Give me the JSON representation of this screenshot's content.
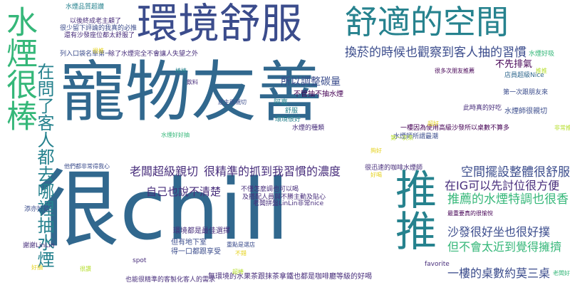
{
  "colors": {
    "navy": "#3b4c8c",
    "blue": "#31688e",
    "teal": "#26828e",
    "green": "#35b779",
    "lime": "#b5de2b",
    "yellow": "#e5d21f",
    "purple": "#472d7b",
    "darkpurple": "#440154"
  },
  "words": [
    {
      "text": "寵物友善",
      "color": "blue",
      "orientation": "horizontal"
    },
    {
      "text": "很chill",
      "color": "blue",
      "orientation": "horizontal"
    },
    {
      "text": "環境舒服",
      "color": "navy",
      "orientation": "horizontal"
    },
    {
      "text": "舒適的空間",
      "color": "teal",
      "orientation": "horizontal"
    },
    {
      "text": "水煙很棒",
      "color": "green",
      "orientation": "vertical"
    },
    {
      "text": "推推",
      "color": "teal",
      "orientation": "vertical"
    },
    {
      "text": "在問了客人都去哪裡抽水煙",
      "color": "teal",
      "orientation": "vertical"
    },
    {
      "text": "換菸的時候也觀察到客人抽的習慣",
      "color": "navy",
      "orientation": "horizontal"
    },
    {
      "text": "所以調整碳量",
      "color": "navy",
      "orientation": "horizontal"
    },
    {
      "text": "老闆超級親切",
      "color": "purple",
      "orientation": "horizontal"
    },
    {
      "text": "很精準的抓到我習慣的濃度",
      "color": "purple",
      "orientation": "horizontal"
    },
    {
      "text": "自己也說不清楚",
      "color": "purple",
      "orientation": "horizontal"
    },
    {
      "text": "空間擺設整體很舒服",
      "color": "navy",
      "orientation": "horizontal"
    },
    {
      "text": "在IG可以先討位很方便",
      "color": "purple",
      "orientation": "horizontal"
    },
    {
      "text": "推薦的水煙特調也很香",
      "color": "green",
      "orientation": "horizontal"
    },
    {
      "text": "沙發很好坐也很好撲",
      "color": "navy",
      "orientation": "horizontal"
    },
    {
      "text": "但不會太近到覺得擁擠",
      "color": "green",
      "orientation": "horizontal"
    },
    {
      "text": "一樓的桌數約莫三桌",
      "color": "navy",
      "orientation": "horizontal"
    },
    {
      "text": "不先排氣",
      "color": "darkpurple",
      "orientation": "horizontal"
    },
    {
      "text": "水煙品質超讚",
      "color": "teal",
      "orientation": "horizontal"
    },
    {
      "text": "以後終成老主顧了",
      "color": "purple",
      "orientation": "horizontal"
    },
    {
      "text": "很少留下評論的我真的必推",
      "color": "navy",
      "orientation": "horizontal"
    },
    {
      "text": "還有沙發座位都太舒服了",
      "color": "purple",
      "orientation": "horizontal"
    },
    {
      "text": "列入口袋名單第一",
      "color": "navy",
      "orientation": "horizontal"
    },
    {
      "text": "除了水煙完全不會讓人失望之外",
      "color": "purple",
      "orientation": "horizontal"
    },
    {
      "text": "不管抽不抽水煙",
      "color": "darkpurple",
      "orientation": "horizontal"
    },
    {
      "text": "水煙師很親切",
      "color": "navy",
      "orientation": "horizontal"
    },
    {
      "text": "一樓因為使用高級沙發所以桌數不算多",
      "color": "darkpurple",
      "orientation": "horizontal"
    },
    {
      "text": "水煙師所謂最潮",
      "color": "navy",
      "orientation": "horizontal"
    },
    {
      "text": "很迅速的咖啡水煙師",
      "color": "purple",
      "orientation": "horizontal"
    },
    {
      "text": "店員超級Nice",
      "color": "blue",
      "orientation": "horizontal"
    },
    {
      "text": "第一次跟朋友來",
      "color": "navy",
      "orientation": "horizontal"
    },
    {
      "text": "此時真的好吃",
      "color": "purple",
      "orientation": "horizontal"
    },
    {
      "text": "水煙的種類",
      "color": "purple",
      "orientation": "horizontal"
    },
    {
      "text": "不僅怎麼調也可以喝",
      "color": "purple",
      "orientation": "horizontal"
    },
    {
      "text": "老闆拼盤LinLin非常nice",
      "color": "purple",
      "orientation": "horizontal"
    },
    {
      "text": "及搭配人員與不勝主動及貼心",
      "color": "purple",
      "orientation": "horizontal"
    },
    {
      "text": "環境都是最佳選擇",
      "color": "purple",
      "orientation": "horizontal"
    },
    {
      "text": "但有地下室",
      "color": "navy",
      "orientation": "horizontal"
    },
    {
      "text": "得一口都跟享受",
      "color": "navy",
      "orientation": "horizontal"
    },
    {
      "text": "無環境的水果茶跟抹茶拿鐵也都是咖啡廳等級的好喝",
      "color": "purple",
      "orientation": "horizontal"
    },
    {
      "text": "也能很精準的客製化客人的需求",
      "color": "purple",
      "orientation": "horizontal"
    },
    {
      "text": "很多次朋友推薦",
      "color": "darkpurple",
      "orientation": "horizontal"
    },
    {
      "text": "最重要真的很愉悅",
      "color": "darkpurple",
      "orientation": "horizontal"
    },
    {
      "text": "水煙好吸",
      "color": "green",
      "orientation": "horizontal"
    },
    {
      "text": "阿嘉",
      "color": "teal",
      "orientation": "horizontal"
    },
    {
      "text": "favorite",
      "color": "purple",
      "orientation": "horizontal"
    },
    {
      "text": "spot",
      "color": "purple",
      "orientation": "horizontal"
    },
    {
      "text": "謝謝LinLin",
      "color": "purple",
      "orientation": "horizontal"
    },
    {
      "text": "添亦好飲",
      "color": "navy",
      "orientation": "horizontal"
    },
    {
      "text": "重點是選店",
      "color": "navy",
      "orientation": "horizontal"
    },
    {
      "text": "他們都非常得我心",
      "color": "navy",
      "orientation": "horizontal"
    },
    {
      "text": "店主很親切",
      "color": "navy",
      "orientation": "horizontal"
    },
    {
      "text": "環境很好",
      "color": "teal",
      "orientation": "horizontal"
    },
    {
      "text": "飲料",
      "color": "purple",
      "orientation": "horizontal"
    },
    {
      "text": "棒棒",
      "color": "teal",
      "orientation": "horizontal"
    },
    {
      "text": "水煙好好抽",
      "color": "green",
      "orientation": "horizontal"
    },
    {
      "text": "第一次來",
      "color": "lime",
      "orientation": "horizontal"
    },
    {
      "text": "舒服",
      "color": "teal",
      "orientation": "horizontal"
    },
    {
      "text": "超棒",
      "color": "lime",
      "orientation": "horizontal"
    },
    {
      "text": "非常推",
      "color": "lime",
      "orientation": "horizontal"
    },
    {
      "text": "好喝",
      "color": "yellow",
      "orientation": "horizontal"
    },
    {
      "text": "不錯",
      "color": "yellow",
      "orientation": "horizontal"
    },
    {
      "text": "好抽",
      "color": "yellow",
      "orientation": "horizontal"
    },
    {
      "text": "很讚",
      "color": "lime",
      "orientation": "horizontal"
    },
    {
      "text": "推推",
      "color": "lime",
      "orientation": "horizontal"
    },
    {
      "text": "夠好",
      "color": "yellow",
      "orientation": "horizontal"
    },
    {
      "text": "很推",
      "color": "yellow",
      "orientation": "horizontal"
    },
    {
      "text": "超好",
      "color": "yellow",
      "orientation": "horizontal"
    },
    {
      "text": "老闆好",
      "color": "green",
      "orientation": "horizontal"
    }
  ]
}
